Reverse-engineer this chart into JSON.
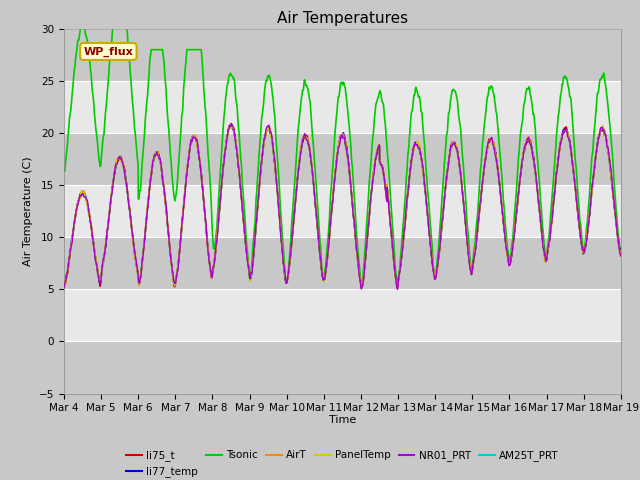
{
  "title": "Air Temperatures",
  "xlabel": "Time",
  "ylabel": "Air Temperature (C)",
  "ylim": [
    -5,
    30
  ],
  "x_tick_labels": [
    "Mar 4",
    "Mar 5",
    "Mar 6",
    "Mar 7",
    "Mar 8",
    "Mar 9",
    "Mar 10",
    "Mar 11",
    "Mar 12",
    "Mar 13",
    "Mar 14",
    "Mar 15",
    "Mar 16",
    "Mar 17",
    "Mar 18",
    "Mar 19"
  ],
  "series": {
    "li75_t": {
      "color": "#cc0000",
      "lw": 1.0,
      "zorder": 4
    },
    "li77_temp": {
      "color": "#0000cc",
      "lw": 1.0,
      "zorder": 4
    },
    "Tsonic": {
      "color": "#00cc00",
      "lw": 1.2,
      "zorder": 2
    },
    "AirT": {
      "color": "#ff8800",
      "lw": 1.0,
      "zorder": 4
    },
    "PanelTemp": {
      "color": "#cccc00",
      "lw": 1.0,
      "zorder": 4
    },
    "NR01_PRT": {
      "color": "#aa00cc",
      "lw": 1.0,
      "zorder": 4
    },
    "AM25T_PRT": {
      "color": "#00cccc",
      "lw": 1.2,
      "zorder": 3
    }
  },
  "legend_order": [
    "li75_t",
    "li77_temp",
    "Tsonic",
    "AirT",
    "PanelTemp",
    "NR01_PRT",
    "AM25T_PRT"
  ],
  "annotation_text": "WP_flux",
  "fig_facecolor": "#c8c8c8",
  "plot_facecolor": "#e8e8e8",
  "band_color": "#c8c8c8",
  "grid_color": "#ffffff",
  "title_fontsize": 11,
  "axis_label_fontsize": 8,
  "tick_fontsize": 7.5
}
